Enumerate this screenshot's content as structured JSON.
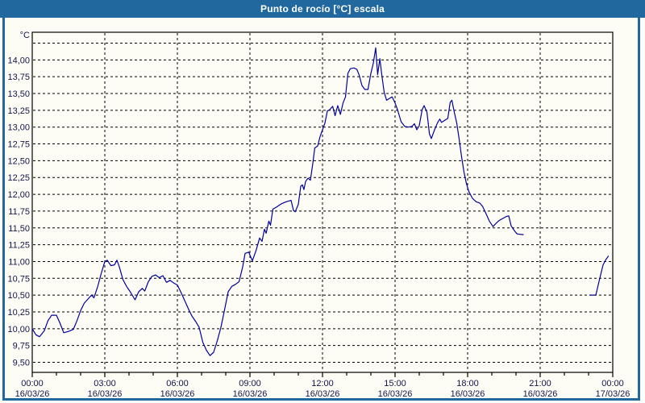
{
  "window": {
    "title": "Punto de rocío [°C] escala"
  },
  "colors": {
    "titlebar": "#20689D",
    "border": "#20689D",
    "plot_frame": "#000000",
    "grid": "#000000",
    "axis_text": "#14144B",
    "line": "#0000A0",
    "background": "#FDFDF6"
  },
  "chart_data": {
    "type": "line",
    "title": "Punto de rocío [°C] escala",
    "y_unit": "°C",
    "grid": true,
    "legend": "none",
    "y_gridline_range": [
      9.5,
      14.25
    ],
    "y_tick_step": 0.25,
    "y_ticks": [
      {
        "v": 14.0,
        "label": "14,00"
      },
      {
        "v": 13.75,
        "label": "13,75"
      },
      {
        "v": 13.5,
        "label": "13,50"
      },
      {
        "v": 13.25,
        "label": "13,25"
      },
      {
        "v": 13.0,
        "label": "13,00"
      },
      {
        "v": 12.75,
        "label": "12,75"
      },
      {
        "v": 12.5,
        "label": "12,50"
      },
      {
        "v": 12.25,
        "label": "12,25"
      },
      {
        "v": 12.0,
        "label": "12,00"
      },
      {
        "v": 11.75,
        "label": "11,75"
      },
      {
        "v": 11.5,
        "label": "11,50"
      },
      {
        "v": 11.25,
        "label": "11,25"
      },
      {
        "v": 11.0,
        "label": "11,00"
      },
      {
        "v": 10.75,
        "label": "10,75"
      },
      {
        "v": 10.5,
        "label": "10,50"
      },
      {
        "v": 10.25,
        "label": "10,25"
      },
      {
        "v": 10.0,
        "label": "10,00"
      },
      {
        "v": 9.75,
        "label": "9,75"
      },
      {
        "v": 9.5,
        "label": "9,50"
      }
    ],
    "x_axis": {
      "hours_span": 24,
      "minor_tick_every_h": 1,
      "major_tick_every_h": 3,
      "ticks": [
        {
          "h": 0,
          "time": "00:00",
          "date": "16/03/26"
        },
        {
          "h": 3,
          "time": "03:00",
          "date": "16/03/26"
        },
        {
          "h": 6,
          "time": "06:00",
          "date": "16/03/26"
        },
        {
          "h": 9,
          "time": "09:00",
          "date": "16/03/26"
        },
        {
          "h": 12,
          "time": "12:00",
          "date": "16/03/26"
        },
        {
          "h": 15,
          "time": "15:00",
          "date": "16/03/26"
        },
        {
          "h": 18,
          "time": "18:00",
          "date": "16/03/26"
        },
        {
          "h": 21,
          "time": "21:00",
          "date": "16/03/26"
        },
        {
          "h": 24,
          "time": "00:00",
          "date": "17/03/26"
        }
      ]
    },
    "series": [
      {
        "name": "Punto de rocío [°C]",
        "color": "#0000A0",
        "segments": [
          [
            [
              0.0,
              10.0
            ],
            [
              0.15,
              9.91
            ],
            [
              0.3,
              9.88
            ],
            [
              0.5,
              9.97
            ],
            [
              0.65,
              10.12
            ],
            [
              0.8,
              10.2
            ],
            [
              1.0,
              10.2
            ],
            [
              1.15,
              10.08
            ],
            [
              1.3,
              9.94
            ],
            [
              1.5,
              9.96
            ],
            [
              1.7,
              9.99
            ],
            [
              1.85,
              10.12
            ],
            [
              2.0,
              10.27
            ],
            [
              2.15,
              10.38
            ],
            [
              2.3,
              10.44
            ],
            [
              2.45,
              10.5
            ],
            [
              2.55,
              10.46
            ],
            [
              2.7,
              10.62
            ],
            [
              2.85,
              10.82
            ],
            [
              3.0,
              11.0
            ],
            [
              3.1,
              11.02
            ],
            [
              3.25,
              10.94
            ],
            [
              3.4,
              10.95
            ],
            [
              3.5,
              11.02
            ],
            [
              3.6,
              10.92
            ],
            [
              3.75,
              10.73
            ],
            [
              3.9,
              10.63
            ],
            [
              4.05,
              10.55
            ],
            [
              4.25,
              10.43
            ],
            [
              4.4,
              10.55
            ],
            [
              4.55,
              10.6
            ],
            [
              4.65,
              10.56
            ],
            [
              4.8,
              10.7
            ],
            [
              4.95,
              10.78
            ],
            [
              5.1,
              10.8
            ],
            [
              5.25,
              10.76
            ],
            [
              5.4,
              10.79
            ],
            [
              5.55,
              10.69
            ],
            [
              5.7,
              10.72
            ],
            [
              5.85,
              10.68
            ],
            [
              6.0,
              10.65
            ],
            [
              6.15,
              10.54
            ],
            [
              6.3,
              10.42
            ],
            [
              6.45,
              10.3
            ],
            [
              6.6,
              10.19
            ],
            [
              6.75,
              10.11
            ],
            [
              6.9,
              10.02
            ],
            [
              7.05,
              9.8
            ],
            [
              7.2,
              9.68
            ],
            [
              7.35,
              9.6
            ],
            [
              7.5,
              9.65
            ],
            [
              7.65,
              9.82
            ],
            [
              7.8,
              10.02
            ],
            [
              7.95,
              10.28
            ],
            [
              8.1,
              10.55
            ],
            [
              8.25,
              10.63
            ],
            [
              8.4,
              10.66
            ],
            [
              8.55,
              10.7
            ],
            [
              8.7,
              10.92
            ],
            [
              8.8,
              11.12
            ],
            [
              8.95,
              11.14
            ],
            [
              9.1,
              11.01
            ],
            [
              9.25,
              11.16
            ],
            [
              9.4,
              11.35
            ],
            [
              9.5,
              11.3
            ],
            [
              9.6,
              11.48
            ],
            [
              9.67,
              11.42
            ],
            [
              9.78,
              11.6
            ],
            [
              9.85,
              11.54
            ],
            [
              9.95,
              11.78
            ],
            [
              10.1,
              11.81
            ],
            [
              10.3,
              11.86
            ],
            [
              10.5,
              11.89
            ],
            [
              10.7,
              11.91
            ],
            [
              10.8,
              11.76
            ],
            [
              10.87,
              11.74
            ],
            [
              11.0,
              11.85
            ],
            [
              11.1,
              12.12
            ],
            [
              11.17,
              12.14
            ],
            [
              11.23,
              12.07
            ],
            [
              11.3,
              12.19
            ],
            [
              11.4,
              12.24
            ],
            [
              11.5,
              12.21
            ],
            [
              11.6,
              12.46
            ],
            [
              11.68,
              12.69
            ],
            [
              11.8,
              12.72
            ],
            [
              11.9,
              12.86
            ],
            [
              12.0,
              12.96
            ],
            [
              12.1,
              13.06
            ],
            [
              12.2,
              13.24
            ],
            [
              12.3,
              13.26
            ],
            [
              12.42,
              13.31
            ],
            [
              12.52,
              13.17
            ],
            [
              12.63,
              13.32
            ],
            [
              12.74,
              13.19
            ],
            [
              12.85,
              13.36
            ],
            [
              12.95,
              13.45
            ],
            [
              13.05,
              13.8
            ],
            [
              13.15,
              13.87
            ],
            [
              13.3,
              13.88
            ],
            [
              13.42,
              13.86
            ],
            [
              13.52,
              13.77
            ],
            [
              13.63,
              13.62
            ],
            [
              13.75,
              13.56
            ],
            [
              13.88,
              13.56
            ],
            [
              14.0,
              13.8
            ],
            [
              14.1,
              13.95
            ],
            [
              14.2,
              14.18
            ],
            [
              14.28,
              13.78
            ],
            [
              14.37,
              14.02
            ],
            [
              14.45,
              13.78
            ],
            [
              14.55,
              13.52
            ],
            [
              14.65,
              13.4
            ],
            [
              14.78,
              13.43
            ],
            [
              14.88,
              13.45
            ],
            [
              15.0,
              13.36
            ],
            [
              15.1,
              13.26
            ],
            [
              15.25,
              13.08
            ],
            [
              15.4,
              13.01
            ],
            [
              15.55,
              13.0
            ],
            [
              15.7,
              13.01
            ],
            [
              15.8,
              13.05
            ],
            [
              15.9,
              12.96
            ],
            [
              16.0,
              13.02
            ],
            [
              16.12,
              13.26
            ],
            [
              16.2,
              13.32
            ],
            [
              16.32,
              13.22
            ],
            [
              16.42,
              12.9
            ],
            [
              16.5,
              12.83
            ],
            [
              16.62,
              12.95
            ],
            [
              16.75,
              13.06
            ],
            [
              16.85,
              13.12
            ],
            [
              16.92,
              13.07
            ],
            [
              17.05,
              13.1
            ],
            [
              17.18,
              13.13
            ],
            [
              17.28,
              13.37
            ],
            [
              17.35,
              13.4
            ],
            [
              17.45,
              13.22
            ],
            [
              17.55,
              13.06
            ],
            [
              17.65,
              12.82
            ],
            [
              17.75,
              12.56
            ],
            [
              17.85,
              12.33
            ],
            [
              17.95,
              12.16
            ],
            [
              18.05,
              12.04
            ],
            [
              18.2,
              11.94
            ],
            [
              18.35,
              11.89
            ],
            [
              18.5,
              11.87
            ],
            [
              18.62,
              11.82
            ],
            [
              18.75,
              11.72
            ],
            [
              18.9,
              11.6
            ],
            [
              19.05,
              11.52
            ],
            [
              19.15,
              11.56
            ],
            [
              19.3,
              11.61
            ],
            [
              19.45,
              11.64
            ],
            [
              19.6,
              11.67
            ],
            [
              19.7,
              11.68
            ],
            [
              19.8,
              11.53
            ],
            [
              19.95,
              11.45
            ],
            [
              20.05,
              11.41
            ],
            [
              20.3,
              11.4
            ]
          ],
          [
            [
              23.05,
              10.5
            ],
            [
              23.3,
              10.5
            ],
            [
              23.45,
              10.73
            ],
            [
              23.6,
              10.95
            ],
            [
              23.72,
              11.03
            ],
            [
              23.82,
              11.08
            ]
          ]
        ]
      }
    ]
  }
}
